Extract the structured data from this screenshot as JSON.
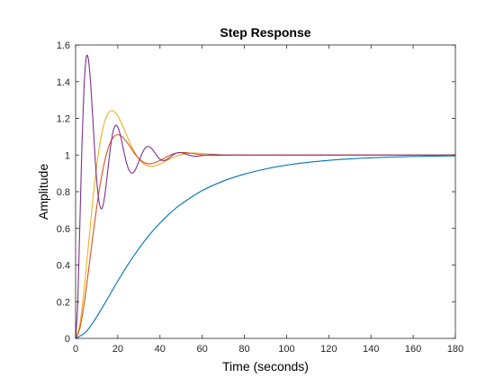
{
  "chart_data": {
    "type": "line",
    "title": "Step Response",
    "xlabel": "Time (seconds)",
    "ylabel": "Amplitude",
    "xlim": [
      0,
      180
    ],
    "ylim": [
      0,
      1.6
    ],
    "x_ticks": [
      0,
      20,
      40,
      60,
      80,
      100,
      120,
      140,
      160,
      180
    ],
    "y_ticks": [
      0,
      0.2,
      0.4,
      0.6,
      0.8,
      1,
      1.2,
      1.4,
      1.6
    ],
    "grid": false,
    "legend": "none",
    "series": [
      {
        "color": "#0072BD",
        "x": [
          0,
          5,
          10,
          15,
          20,
          25,
          30,
          35,
          40,
          45,
          50,
          60,
          70,
          80,
          90,
          100,
          110,
          120,
          130,
          140,
          150,
          160,
          170,
          180
        ],
        "y": [
          0,
          0.037,
          0.118,
          0.214,
          0.313,
          0.406,
          0.49,
          0.565,
          0.629,
          0.685,
          0.732,
          0.806,
          0.858,
          0.896,
          0.924,
          0.945,
          0.96,
          0.971,
          0.979,
          0.985,
          0.989,
          0.992,
          0.994,
          0.996
        ]
      },
      {
        "color": "#EDB120",
        "x": [
          0,
          2,
          4,
          6,
          8,
          10,
          12,
          14,
          16,
          18,
          20,
          22,
          24,
          26,
          28,
          30,
          32,
          34,
          36,
          38,
          40,
          42,
          44,
          46,
          48,
          50,
          52,
          54,
          56,
          58,
          60,
          65,
          70,
          80,
          100,
          120,
          140,
          160,
          180
        ],
        "y": [
          0,
          0.077,
          0.263,
          0.498,
          0.735,
          0.94,
          1.094,
          1.19,
          1.236,
          1.24,
          1.213,
          1.167,
          1.113,
          1.06,
          1.014,
          0.979,
          0.955,
          0.942,
          0.939,
          0.942,
          0.951,
          0.963,
          0.975,
          0.986,
          0.995,
          1.002,
          1.007,
          1.01,
          1.011,
          1.01,
          1.009,
          1.004,
          1.001,
          1.0,
          1.0,
          1.0,
          1.0,
          1.0,
          1.0
        ]
      },
      {
        "color": "#D95319",
        "x": [
          0,
          2,
          4,
          6,
          8,
          10,
          12,
          14,
          16,
          18,
          20,
          22,
          24,
          26,
          28,
          30,
          32,
          34,
          36,
          38,
          40,
          42,
          44,
          46,
          48,
          50,
          52,
          54,
          56,
          58,
          60,
          65,
          70,
          75,
          80,
          90,
          100,
          120,
          140,
          160,
          180
        ],
        "y": [
          0,
          0.054,
          0.186,
          0.359,
          0.543,
          0.716,
          0.863,
          0.977,
          1.055,
          1.098,
          1.111,
          1.101,
          1.075,
          1.042,
          1.008,
          0.981,
          0.962,
          0.953,
          0.953,
          0.96,
          0.97,
          0.983,
          0.995,
          1.005,
          1.011,
          1.013,
          1.013,
          1.011,
          1.008,
          1.004,
          1.001,
          0.998,
          0.999,
          1.0,
          1.0,
          1.0,
          1.0,
          1.0,
          1.0,
          1.0,
          1.0
        ]
      },
      {
        "color": "#7E2F8E",
        "x": [
          0,
          1,
          2,
          3,
          4,
          5,
          6,
          7,
          8,
          9,
          10,
          11,
          12,
          13,
          14,
          15,
          16,
          17,
          18,
          19,
          20,
          21,
          22,
          23,
          24,
          25,
          26,
          27,
          28,
          29,
          30,
          31,
          32,
          33,
          34,
          35,
          36,
          37,
          38,
          39,
          40,
          41,
          42,
          43,
          44,
          45,
          46,
          47,
          48,
          49,
          50,
          52,
          54,
          56,
          58,
          60,
          65,
          70,
          80,
          100,
          120,
          140,
          160,
          180
        ],
        "y": [
          0,
          0.191,
          0.613,
          1.05,
          1.372,
          1.528,
          1.527,
          1.41,
          1.23,
          1.031,
          0.864,
          0.753,
          0.708,
          0.725,
          0.793,
          0.89,
          0.992,
          1.08,
          1.138,
          1.162,
          1.153,
          1.118,
          1.067,
          1.013,
          0.963,
          0.926,
          0.906,
          0.902,
          0.913,
          0.937,
          0.966,
          0.995,
          1.021,
          1.038,
          1.046,
          1.045,
          1.036,
          1.021,
          1.005,
          0.989,
          0.977,
          0.971,
          0.97,
          0.974,
          0.981,
          0.99,
          0.999,
          1.006,
          1.011,
          1.013,
          1.013,
          1.007,
          0.999,
          0.994,
          0.994,
          0.997,
          1.002,
          1.0,
          1.0,
          1.0,
          1.0,
          1.0,
          1.0,
          1.0
        ]
      }
    ]
  }
}
